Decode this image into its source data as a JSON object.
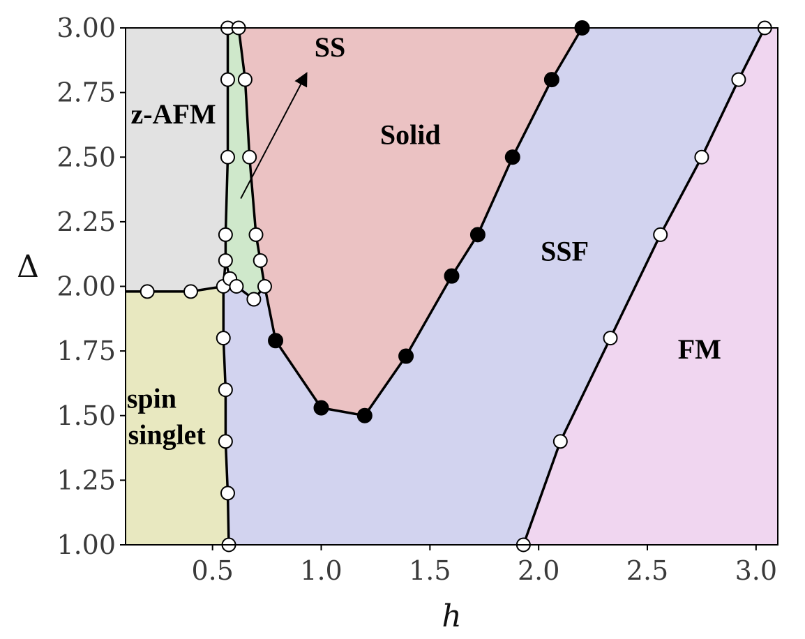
{
  "chart_data": {
    "type": "phase-diagram",
    "xlabel": "h",
    "ylabel": "Δ",
    "xlim": [
      0.1,
      3.1
    ],
    "ylim": [
      1.0,
      3.0
    ],
    "x_ticks": [
      {
        "value": 0.5,
        "label": "0.5"
      },
      {
        "value": 1.0,
        "label": "1.0"
      },
      {
        "value": 1.5,
        "label": "1.5"
      },
      {
        "value": 2.0,
        "label": "2.0"
      },
      {
        "value": 2.5,
        "label": "2.5"
      },
      {
        "value": 3.0,
        "label": "3.0"
      }
    ],
    "y_ticks": [
      {
        "value": 1.0,
        "label": "1.00"
      },
      {
        "value": 1.25,
        "label": "1.25"
      },
      {
        "value": 1.5,
        "label": "1.50"
      },
      {
        "value": 1.75,
        "label": "1.75"
      },
      {
        "value": 2.0,
        "label": "2.00"
      },
      {
        "value": 2.25,
        "label": "2.25"
      },
      {
        "value": 2.5,
        "label": "2.50"
      },
      {
        "value": 2.75,
        "label": "2.75"
      },
      {
        "value": 3.0,
        "label": "3.00"
      }
    ],
    "regions": [
      {
        "id": "z-afm",
        "fill": "#e2e2e2",
        "polygon": [
          [
            0.1,
            3.0
          ],
          [
            0.57,
            3.0
          ],
          [
            0.56,
            2.2
          ],
          [
            0.55,
            2.0
          ],
          [
            0.4,
            1.98
          ],
          [
            0.2,
            1.98
          ],
          [
            0.1,
            1.98
          ]
        ]
      },
      {
        "id": "spin-singlet",
        "fill": "#e8e8c0",
        "polygon": [
          [
            0.1,
            1.98
          ],
          [
            0.2,
            1.98
          ],
          [
            0.4,
            1.98
          ],
          [
            0.55,
            2.0
          ],
          [
            0.55,
            1.8
          ],
          [
            0.56,
            1.6
          ],
          [
            0.56,
            1.4
          ],
          [
            0.57,
            1.2
          ],
          [
            0.575,
            1.0
          ],
          [
            0.1,
            1.0
          ]
        ]
      },
      {
        "id": "ss",
        "fill": "#cfe8cb",
        "polygon": [
          [
            0.57,
            3.0
          ],
          [
            0.62,
            3.0
          ],
          [
            0.65,
            2.8
          ],
          [
            0.67,
            2.5
          ],
          [
            0.7,
            2.2
          ],
          [
            0.72,
            2.1
          ],
          [
            0.74,
            2.0
          ],
          [
            0.69,
            1.95
          ],
          [
            0.6,
            2.03
          ],
          [
            0.56,
            2.1
          ],
          [
            0.56,
            2.2
          ],
          [
            0.57,
            2.5
          ],
          [
            0.57,
            2.8
          ]
        ]
      },
      {
        "id": "solid",
        "fill": "#ebc2c3",
        "polygon": [
          [
            0.62,
            3.0
          ],
          [
            2.2,
            3.0
          ],
          [
            2.06,
            2.8
          ],
          [
            1.88,
            2.5
          ],
          [
            1.72,
            2.2
          ],
          [
            1.6,
            2.04
          ],
          [
            1.39,
            1.73
          ],
          [
            1.2,
            1.5
          ],
          [
            1.0,
            1.53
          ],
          [
            0.79,
            1.79
          ],
          [
            0.74,
            2.0
          ],
          [
            0.72,
            2.1
          ],
          [
            0.7,
            2.2
          ],
          [
            0.67,
            2.5
          ],
          [
            0.65,
            2.8
          ]
        ]
      },
      {
        "id": "ssf",
        "fill": "#d2d3ef",
        "polygon": [
          [
            2.2,
            3.0
          ],
          [
            3.04,
            3.0
          ],
          [
            2.92,
            2.8
          ],
          [
            2.75,
            2.5
          ],
          [
            2.56,
            2.2
          ],
          [
            2.33,
            1.8
          ],
          [
            2.1,
            1.4
          ],
          [
            1.93,
            1.0
          ],
          [
            0.575,
            1.0
          ],
          [
            0.57,
            1.2
          ],
          [
            0.56,
            1.4
          ],
          [
            0.56,
            1.6
          ],
          [
            0.55,
            1.8
          ],
          [
            0.55,
            2.0
          ],
          [
            0.6,
            2.03
          ],
          [
            0.69,
            1.95
          ],
          [
            0.74,
            2.0
          ],
          [
            0.79,
            1.79
          ],
          [
            1.0,
            1.53
          ],
          [
            1.2,
            1.5
          ],
          [
            1.39,
            1.73
          ],
          [
            1.6,
            2.04
          ],
          [
            1.72,
            2.2
          ],
          [
            1.88,
            2.5
          ],
          [
            2.06,
            2.8
          ]
        ]
      },
      {
        "id": "fm",
        "fill": "#f0d6f0",
        "polygon": [
          [
            3.04,
            3.0
          ],
          [
            3.1,
            3.0
          ],
          [
            3.1,
            1.0
          ],
          [
            1.93,
            1.0
          ],
          [
            2.1,
            1.4
          ],
          [
            2.33,
            1.8
          ],
          [
            2.56,
            2.2
          ],
          [
            2.75,
            2.5
          ],
          [
            2.92,
            2.8
          ]
        ]
      }
    ],
    "boundaries": [
      {
        "id": "zafm-singlet",
        "marker": "open",
        "points": [
          [
            0.1,
            1.98
          ],
          [
            0.2,
            1.98
          ],
          [
            0.4,
            1.98
          ],
          [
            0.55,
            2.0
          ]
        ]
      },
      {
        "id": "singlet-ssf",
        "marker": "open",
        "points": [
          [
            0.55,
            2.0
          ],
          [
            0.55,
            1.8
          ],
          [
            0.56,
            1.6
          ],
          [
            0.56,
            1.4
          ],
          [
            0.57,
            1.2
          ],
          [
            0.575,
            1.0
          ]
        ]
      },
      {
        "id": "zafm-ss",
        "marker": "open",
        "points": [
          [
            0.57,
            3.0
          ],
          [
            0.57,
            2.8
          ],
          [
            0.57,
            2.5
          ],
          [
            0.56,
            2.2
          ],
          [
            0.56,
            2.1
          ],
          [
            0.55,
            2.0
          ]
        ]
      },
      {
        "id": "ss-ssf",
        "marker": "open",
        "points": [
          [
            0.56,
            2.1
          ],
          [
            0.58,
            2.03
          ],
          [
            0.61,
            2.0
          ],
          [
            0.69,
            1.95
          ],
          [
            0.74,
            2.0
          ]
        ]
      },
      {
        "id": "ss-solid",
        "marker": "open",
        "points": [
          [
            0.62,
            3.0
          ],
          [
            0.65,
            2.8
          ],
          [
            0.67,
            2.5
          ],
          [
            0.7,
            2.2
          ],
          [
            0.72,
            2.1
          ],
          [
            0.74,
            2.0
          ]
        ]
      },
      {
        "id": "solid-ssf-lower",
        "marker": "filled",
        "points": [
          [
            0.74,
            2.0
          ],
          [
            0.79,
            1.79
          ],
          [
            1.0,
            1.53
          ],
          [
            1.2,
            1.5
          ],
          [
            1.39,
            1.73
          ],
          [
            1.6,
            2.04
          ],
          [
            1.72,
            2.2
          ],
          [
            1.88,
            2.5
          ],
          [
            2.06,
            2.8
          ],
          [
            2.2,
            3.0
          ]
        ]
      },
      {
        "id": "ssf-fm",
        "marker": "open",
        "points": [
          [
            1.93,
            1.0
          ],
          [
            2.1,
            1.4
          ],
          [
            2.33,
            1.8
          ],
          [
            2.56,
            2.2
          ],
          [
            2.75,
            2.5
          ],
          [
            2.92,
            2.8
          ],
          [
            3.04,
            3.0
          ]
        ]
      }
    ],
    "markers": {
      "open": [
        [
          0.2,
          1.98
        ],
        [
          0.4,
          1.98
        ],
        [
          0.55,
          2.0
        ],
        [
          0.55,
          1.8
        ],
        [
          0.56,
          1.6
        ],
        [
          0.56,
          1.4
        ],
        [
          0.57,
          1.2
        ],
        [
          0.575,
          1.0
        ],
        [
          0.57,
          3.0
        ],
        [
          0.57,
          2.8
        ],
        [
          0.57,
          2.5
        ],
        [
          0.56,
          2.2
        ],
        [
          0.56,
          2.1
        ],
        [
          0.58,
          2.03
        ],
        [
          0.61,
          2.0
        ],
        [
          0.69,
          1.95
        ],
        [
          0.74,
          2.0
        ],
        [
          0.62,
          3.0
        ],
        [
          0.65,
          2.8
        ],
        [
          0.67,
          2.5
        ],
        [
          0.7,
          2.2
        ],
        [
          0.72,
          2.1
        ],
        [
          1.93,
          1.0
        ],
        [
          2.1,
          1.4
        ],
        [
          2.33,
          1.8
        ],
        [
          2.56,
          2.2
        ],
        [
          2.75,
          2.5
        ],
        [
          2.92,
          2.8
        ],
        [
          3.04,
          3.0
        ]
      ],
      "filled": [
        [
          0.79,
          1.79
        ],
        [
          1.0,
          1.53
        ],
        [
          1.2,
          1.5
        ],
        [
          1.39,
          1.73
        ],
        [
          1.6,
          2.04
        ],
        [
          1.72,
          2.2
        ],
        [
          1.88,
          2.5
        ],
        [
          2.06,
          2.8
        ],
        [
          2.2,
          3.0
        ]
      ]
    },
    "region_labels": [
      {
        "text": "z-AFM",
        "x": 0.32,
        "y": 2.63
      },
      {
        "text": "SS",
        "x": 1.04,
        "y": 2.89
      },
      {
        "text": "Solid",
        "x": 1.41,
        "y": 2.55
      },
      {
        "text": "SSF",
        "x": 2.12,
        "y": 2.1
      },
      {
        "text": "FM",
        "x": 2.74,
        "y": 1.72
      },
      {
        "text": "spin",
        "x": 0.22,
        "y": 1.53
      },
      {
        "text": "singlet",
        "x": 0.29,
        "y": 1.39
      }
    ],
    "annotation_arrow": {
      "from": [
        0.63,
        2.34
      ],
      "to": [
        0.93,
        2.82
      ]
    }
  }
}
